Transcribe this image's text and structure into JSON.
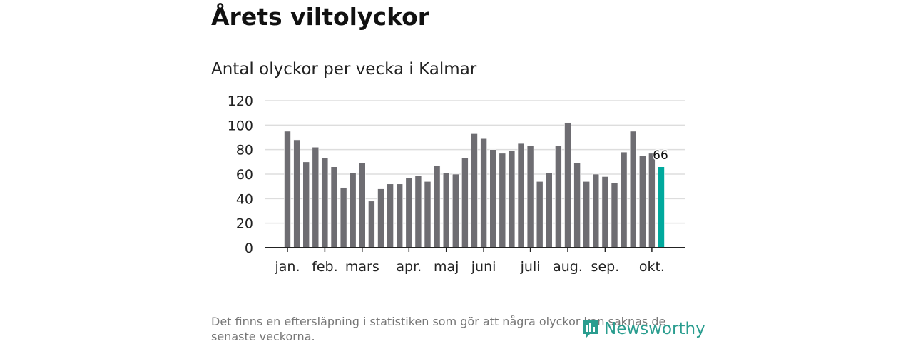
{
  "title": "Årets viltolyckor",
  "chart_data": {
    "type": "bar",
    "title": "Antal olyckor per vecka i Kalmar",
    "xlabel": "",
    "ylabel": "",
    "ylim": [
      0,
      120
    ],
    "yticks": [
      0,
      20,
      40,
      60,
      80,
      100,
      120
    ],
    "values": [
      95,
      88,
      70,
      82,
      73,
      66,
      49,
      61,
      69,
      38,
      48,
      52,
      52,
      57,
      59,
      54,
      67,
      61,
      60,
      73,
      93,
      89,
      80,
      77,
      79,
      85,
      83,
      54,
      61,
      83,
      102,
      69,
      54,
      60,
      58,
      53,
      78,
      95,
      75,
      77,
      66
    ],
    "month_ticks": [
      {
        "label": "jan.",
        "week": 0
      },
      {
        "label": "feb.",
        "week": 4
      },
      {
        "label": "mars",
        "week": 8
      },
      {
        "label": "apr.",
        "week": 13
      },
      {
        "label": "maj",
        "week": 17
      },
      {
        "label": "juni",
        "week": 21
      },
      {
        "label": "juli",
        "week": 26
      },
      {
        "label": "aug.",
        "week": 30
      },
      {
        "label": "sep.",
        "week": 34
      },
      {
        "label": "okt.",
        "week": 39
      }
    ],
    "highlight_label": "66",
    "colors": {
      "bar": "#6e6d72",
      "highlight": "#00a99d"
    }
  },
  "note": "Det finns en eftersläpning i statistiken som gör att några olyckor kan saknas de senaste veckorna.",
  "logo": "Newsworthy"
}
